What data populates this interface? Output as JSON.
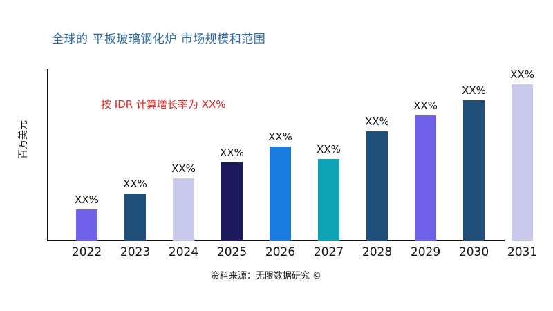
{
  "page": {
    "title": "全球的 平板玻璃钢化炉 市场规模和范围",
    "title_color": "#2E6DA4",
    "source": "资料来源：无限数据研究 ©",
    "background_color": "#FFFFFF",
    "axis_color": "#111111",
    "annotation_color": "#E32222"
  },
  "chart_data": {
    "type": "bar",
    "title": "全球的 平板玻璃钢化炉 市场规模和范围",
    "xlabel": "",
    "ylabel": "百万美元",
    "annotation": "按 IDR 计算增长率为 XX%",
    "categories": [
      "2022",
      "2023",
      "2024",
      "2025",
      "2026",
      "2027",
      "2028",
      "2029",
      "2030",
      "2031"
    ],
    "values": [
      20,
      30,
      40,
      50,
      60,
      52,
      70,
      80,
      90,
      100
    ],
    "values_note": "actual figures are masked as XX% in the image; values are relative bar heights in % of the 2031 bar",
    "value_labels": [
      "XX%",
      "XX%",
      "XX%",
      "XX%",
      "XX%",
      "XX%",
      "XX%",
      "XX%",
      "XX%",
      "XX%"
    ],
    "bar_colors": [
      "#6F62E8",
      "#1F4E79",
      "#C9C9EC",
      "#1E1A5E",
      "#1A7CDF",
      "#0FA4B5",
      "#1F4E79",
      "#6F62E8",
      "#1F4E79",
      "#C9C9EC"
    ],
    "ylim": [
      0,
      110
    ],
    "grid": false,
    "legend": null,
    "y_tick_labels": []
  }
}
